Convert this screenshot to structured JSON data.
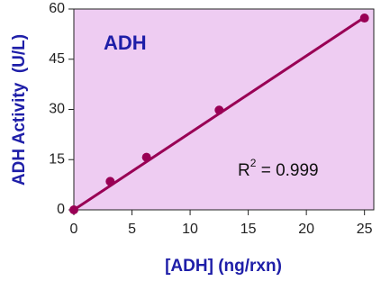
{
  "chart_data": {
    "type": "scatter",
    "title": "ADH",
    "xlabel": "[ADH] (ng/rxn)",
    "ylabel": "ADH Activity  (U/L)",
    "annotation": [
      "R",
      "2",
      " = 0.999"
    ],
    "xlim": [
      0,
      25.8
    ],
    "xticks": [
      0,
      5,
      10,
      15,
      20,
      25
    ],
    "ylim": [
      0,
      60
    ],
    "yticks": [
      0,
      15,
      30,
      45,
      60
    ],
    "background": "#eeccf2",
    "series": [
      {
        "mode": "markers",
        "color": "#990055",
        "x": [
          0,
          3.125,
          6.25,
          12.5,
          25
        ],
        "values": [
          0,
          8.5,
          15.7,
          29.8,
          57.3
        ]
      },
      {
        "mode": "line",
        "color": "#990055",
        "x": [
          0,
          25
        ],
        "values": [
          0,
          57.5
        ]
      }
    ]
  }
}
